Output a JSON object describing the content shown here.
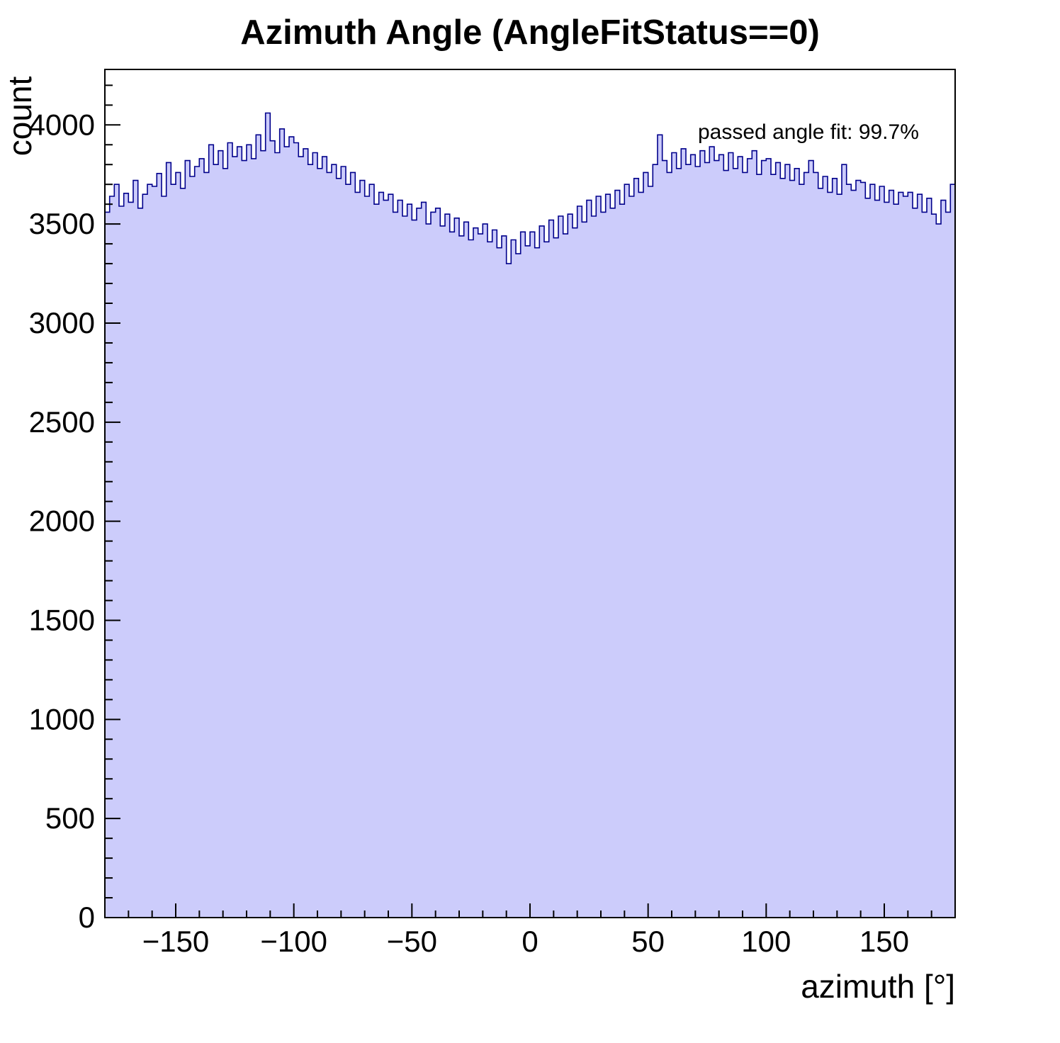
{
  "page": {
    "background": "#ffffff"
  },
  "chart_data": {
    "type": "bar",
    "subtype": "histogram",
    "title": "Azimuth Angle (AngleFitStatus==0)",
    "xlabel": "azimuth [°]",
    "ylabel": "count",
    "annotation": "passed angle fit: 99.7%",
    "xlim": [
      -180,
      180
    ],
    "ylim": [
      0,
      4280
    ],
    "bin_width": 2,
    "x_major_ticks": [
      -150,
      -100,
      -50,
      0,
      50,
      100,
      150
    ],
    "x_minor_step": 10,
    "y_major_ticks": [
      0,
      500,
      1000,
      1500,
      2000,
      2500,
      3000,
      3500,
      4000
    ],
    "y_minor_step": 100,
    "grid": false,
    "legend": "none",
    "fill_color": "#ccccfb",
    "line_color": "#00008b",
    "axis_color": "#000000",
    "values": [
      3560,
      3640,
      3700,
      3590,
      3655,
      3610,
      3720,
      3580,
      3650,
      3700,
      3690,
      3755,
      3640,
      3810,
      3700,
      3760,
      3680,
      3820,
      3740,
      3790,
      3830,
      3760,
      3900,
      3800,
      3870,
      3780,
      3910,
      3840,
      3890,
      3820,
      3900,
      3830,
      3950,
      3870,
      4060,
      3920,
      3860,
      3980,
      3890,
      3940,
      3910,
      3840,
      3880,
      3800,
      3860,
      3780,
      3840,
      3760,
      3800,
      3730,
      3790,
      3700,
      3760,
      3660,
      3720,
      3640,
      3700,
      3600,
      3660,
      3620,
      3650,
      3560,
      3620,
      3540,
      3600,
      3520,
      3580,
      3610,
      3500,
      3560,
      3580,
      3490,
      3550,
      3460,
      3530,
      3440,
      3510,
      3420,
      3480,
      3450,
      3500,
      3410,
      3470,
      3380,
      3440,
      3300,
      3420,
      3350,
      3460,
      3390,
      3460,
      3380,
      3490,
      3410,
      3520,
      3430,
      3540,
      3450,
      3550,
      3480,
      3590,
      3510,
      3620,
      3540,
      3640,
      3560,
      3650,
      3580,
      3670,
      3600,
      3700,
      3640,
      3730,
      3660,
      3760,
      3690,
      3800,
      3950,
      3820,
      3760,
      3860,
      3780,
      3880,
      3800,
      3850,
      3790,
      3870,
      3810,
      3890,
      3820,
      3850,
      3770,
      3860,
      3780,
      3840,
      3760,
      3830,
      3870,
      3750,
      3820,
      3830,
      3750,
      3810,
      3730,
      3800,
      3720,
      3780,
      3700,
      3760,
      3820,
      3760,
      3680,
      3740,
      3660,
      3730,
      3650,
      3800,
      3700,
      3670,
      3720,
      3710,
      3630,
      3700,
      3620,
      3690,
      3610,
      3670,
      3600,
      3660,
      3640,
      3660,
      3580,
      3650,
      3560,
      3630,
      3550,
      3500,
      3620,
      3560,
      3700
    ]
  }
}
